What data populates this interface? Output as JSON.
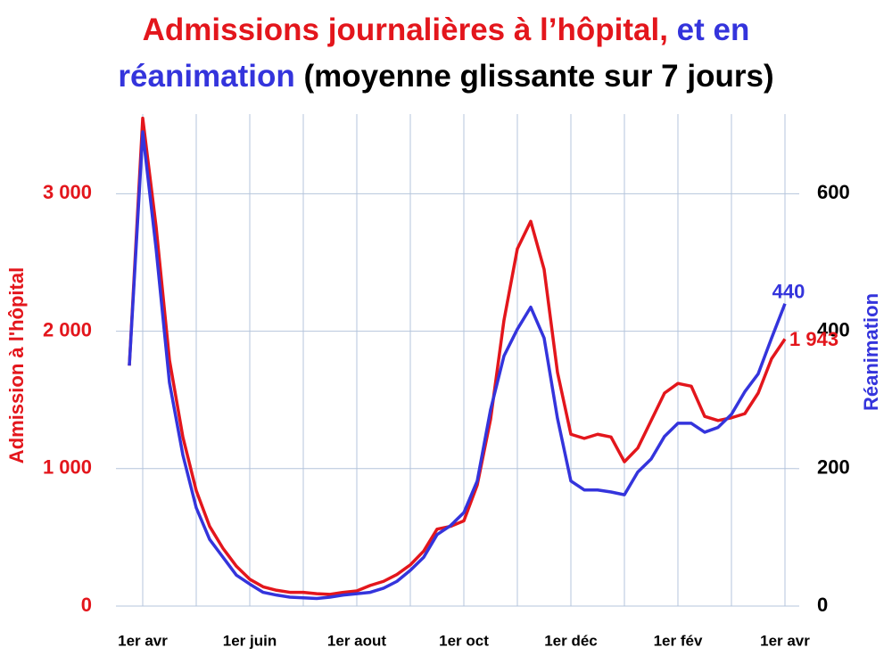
{
  "chart_data": {
    "type": "line",
    "title_parts": [
      {
        "text": "Admissions journalières à l’hôpital,",
        "color": "#e3161c"
      },
      {
        "text": "et en",
        "color": "#3434dc"
      },
      {
        "text": "réanimation",
        "color": "#3434dc"
      },
      {
        "text": "(moyenne glissante sur 7 jours)",
        "color": "#000000"
      }
    ],
    "y_label": "Admission à l'hôpital",
    "y_label_color": "#e3161c",
    "y2_label": "Réanimation",
    "y2_label_color": "#3434dc",
    "categories": [
      null,
      "1er avr",
      null,
      null,
      null,
      null,
      null,
      null,
      null,
      "1er juin",
      null,
      null,
      null,
      null,
      null,
      null,
      null,
      "1er aout",
      null,
      null,
      null,
      null,
      null,
      null,
      null,
      "1er oct",
      null,
      null,
      null,
      null,
      null,
      null,
      null,
      "1er déc",
      null,
      null,
      null,
      null,
      null,
      null,
      null,
      "1er fév",
      null,
      null,
      null,
      null,
      null,
      null,
      null,
      "1er avr"
    ],
    "series": [
      {
        "name": "Admissions à l'hôpital",
        "color": "#e3161c",
        "axis": "y",
        "values": [
          1750,
          3550,
          2760,
          1790,
          1230,
          840,
          580,
          420,
          290,
          195,
          140,
          115,
          100,
          100,
          90,
          85,
          100,
          110,
          150,
          180,
          230,
          300,
          400,
          560,
          580,
          620,
          880,
          1360,
          2080,
          2600,
          2800,
          2450,
          1700,
          1250,
          1220,
          1250,
          1230,
          1050,
          1150,
          1350,
          1550,
          1620,
          1600,
          1380,
          1350,
          1370,
          1400,
          1550,
          1800,
          1943
        ],
        "value_labels": [
          null,
          null,
          null,
          null,
          null,
          null,
          null,
          null,
          null,
          null,
          null,
          null,
          null,
          null,
          null,
          null,
          null,
          null,
          null,
          null,
          null,
          null,
          null,
          null,
          null,
          null,
          null,
          null,
          null,
          null,
          null,
          null,
          null,
          null,
          null,
          null,
          null,
          null,
          null,
          null,
          null,
          null,
          null,
          null,
          null,
          null,
          null,
          null,
          null,
          "1 943"
        ]
      },
      {
        "name": "Réanimation",
        "color": "#3434dc",
        "axis": "y2",
        "values": [
          350,
          690,
          520,
          325,
          220,
          143,
          97,
          71,
          45,
          32,
          20,
          16,
          13,
          12,
          11,
          13,
          16,
          18,
          20,
          26,
          36,
          52,
          71,
          104,
          117,
          136,
          182,
          286,
          364,
          403,
          435,
          390,
          273,
          182,
          169,
          169,
          166,
          162,
          195,
          214,
          247,
          266,
          266,
          253,
          260,
          279,
          312,
          338,
          390,
          440
        ]
      }
    ],
    "ylim": [
      0,
      3580
    ],
    "yticks": [
      0,
      {
        "value": 1000,
        "label": "1 000"
      },
      {
        "value": 2000,
        "label": "2 000"
      },
      {
        "value": 3000,
        "label": "3 000"
      }
    ],
    "y2lim": [
      0,
      716
    ],
    "y2ticks": [
      0,
      200,
      400,
      600
    ],
    "grid": true
  }
}
